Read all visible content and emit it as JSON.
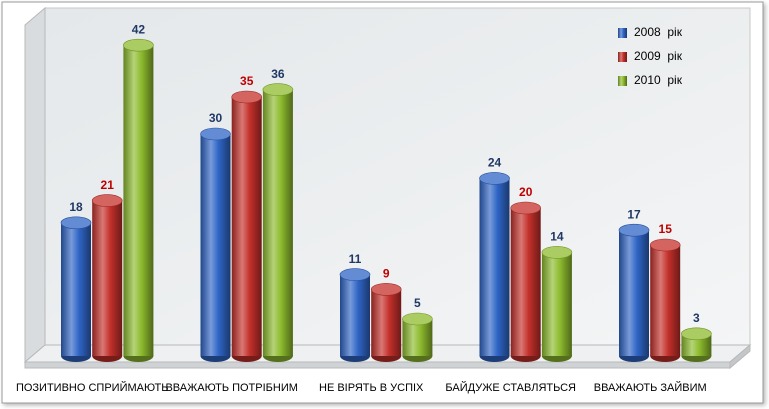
{
  "chart_data": {
    "type": "bar",
    "categories": [
      "ПОЗИТИВНО СПРИЙМАЮТЬ",
      "ВВАЖАЮТЬ ПОТРІБНИМ",
      "НЕ ВІРЯТЬ В УСПІХ",
      "БАЙДУЖЕ СТАВЛЯТЬСЯ",
      "ВВАЖАЮТЬ ЗАЙВИМ"
    ],
    "series": [
      {
        "name": "2008  рік",
        "color": "#2f65c6",
        "label_color": "#1f3864",
        "values": [
          18,
          30,
          11,
          24,
          17
        ]
      },
      {
        "name": "2009  рік",
        "color": "#c4302b",
        "label_color": "#c00000",
        "values": [
          21,
          35,
          9,
          20,
          15
        ]
      },
      {
        "name": "2010  рік",
        "color": "#8dbb2e",
        "label_color": "#1f3864",
        "values": [
          42,
          36,
          5,
          14,
          3
        ]
      }
    ],
    "legend": "top-right"
  }
}
